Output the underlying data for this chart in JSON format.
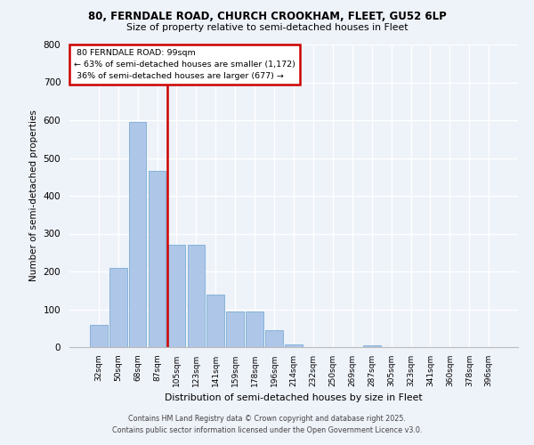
{
  "title_line1": "80, FERNDALE ROAD, CHURCH CROOKHAM, FLEET, GU52 6LP",
  "title_line2": "Size of property relative to semi-detached houses in Fleet",
  "xlabel": "Distribution of semi-detached houses by size in Fleet",
  "ylabel": "Number of semi-detached properties",
  "bar_labels": [
    "32sqm",
    "50sqm",
    "68sqm",
    "87sqm",
    "105sqm",
    "123sqm",
    "141sqm",
    "159sqm",
    "178sqm",
    "196sqm",
    "214sqm",
    "232sqm",
    "250sqm",
    "269sqm",
    "287sqm",
    "305sqm",
    "323sqm",
    "341sqm",
    "360sqm",
    "378sqm",
    "396sqm"
  ],
  "bar_values": [
    60,
    210,
    595,
    465,
    270,
    270,
    140,
    93,
    93,
    45,
    7,
    0,
    0,
    0,
    5,
    0,
    0,
    0,
    0,
    0,
    0
  ],
  "property_label": "80 FERNDALE ROAD: 99sqm",
  "pct_smaller": 63,
  "pct_larger": 36,
  "n_smaller": 1172,
  "n_larger": 677,
  "vline_bin_index": 4,
  "bar_color": "#aec6e8",
  "bar_edge_color": "#7aadd4",
  "vline_color": "#cc0000",
  "box_edge_color": "#cc0000",
  "background_color": "#eef2f9",
  "grid_color": "#ffffff",
  "footer_line1": "Contains HM Land Registry data © Crown copyright and database right 2025.",
  "footer_line2": "Contains public sector information licensed under the Open Government Licence v3.0.",
  "ylim": [
    0,
    800
  ],
  "yticks": [
    0,
    100,
    200,
    300,
    400,
    500,
    600,
    700,
    800
  ]
}
